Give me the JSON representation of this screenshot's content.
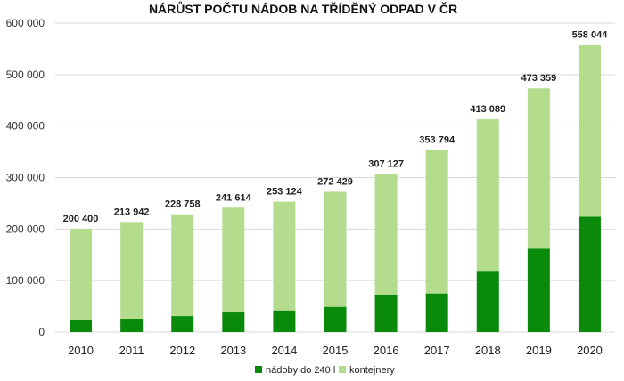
{
  "chart_data": {
    "type": "bar",
    "stacked": true,
    "title": "NÁRŮST POČTU NÁDOB NA TŘÍDĚNÝ ODPAD V ČR",
    "xlabel": "",
    "ylabel": "",
    "ylim": [
      0,
      600000
    ],
    "yticks": [
      0,
      100000,
      200000,
      300000,
      400000,
      500000,
      600000
    ],
    "ytick_labels": [
      "0",
      "100 000",
      "200 000",
      "300 000",
      "400 000",
      "500 000",
      "600 000"
    ],
    "categories": [
      "2010",
      "2011",
      "2012",
      "2013",
      "2014",
      "2015",
      "2016",
      "2017",
      "2018",
      "2019",
      "2020"
    ],
    "totals": [
      200400,
      213942,
      228758,
      241614,
      253124,
      272429,
      307127,
      353794,
      413089,
      473359,
      558044
    ],
    "total_labels": [
      "200 400",
      "213 942",
      "228 758",
      "241 614",
      "253 124",
      "272 429",
      "307 127",
      "353 794",
      "413 089",
      "473 359",
      "558 044"
    ],
    "series": [
      {
        "name": "nádoby do 240 l",
        "color": "#0a8a0a",
        "values": [
          23000,
          26000,
          31000,
          38000,
          42000,
          49000,
          73000,
          75000,
          119000,
          162000,
          224000
        ]
      },
      {
        "name": "kontejnery",
        "color": "#b3dc8c",
        "values": [
          177400,
          187942,
          197758,
          203614,
          211124,
          223429,
          234127,
          278794,
          294089,
          311359,
          334044
        ]
      }
    ],
    "grid": true,
    "legend": "bottom"
  }
}
